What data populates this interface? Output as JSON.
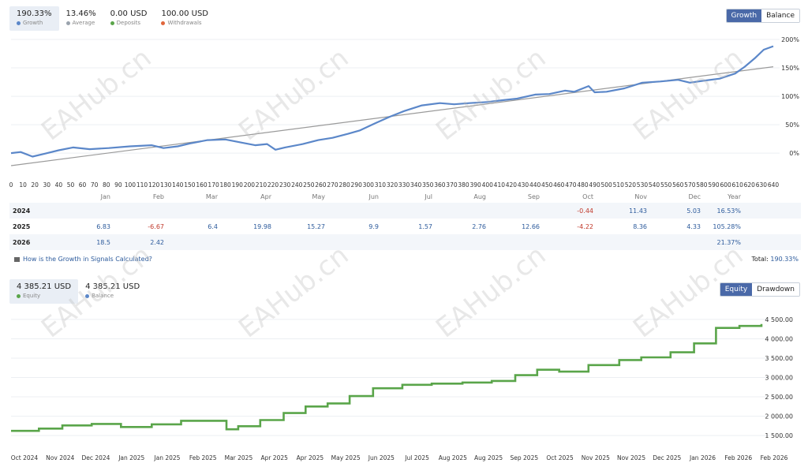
{
  "growth_stats": [
    {
      "value": "190.33%",
      "label": "Growth",
      "color": "#5b87c9",
      "active": true
    },
    {
      "value": "13.46%",
      "label": "Average",
      "color": "#9aa3ad",
      "active": false
    },
    {
      "value": "0.00 USD",
      "label": "Deposits",
      "color": "#5aa54a",
      "active": false
    },
    {
      "value": "100.00 USD",
      "label": "Withdrawals",
      "color": "#e0663c",
      "active": false
    }
  ],
  "growth_toggle": {
    "growth": "Growth",
    "balance": "Balance"
  },
  "growth_chart": {
    "y_ticks": [
      "200%",
      "150%",
      "100%",
      "50%",
      "0%"
    ],
    "x_ticks": [
      "0",
      "10",
      "20",
      "30",
      "40",
      "50",
      "60",
      "70",
      "80",
      "90",
      "100",
      "110",
      "120",
      "130",
      "140",
      "150",
      "160",
      "170",
      "180",
      "190",
      "200",
      "210",
      "220",
      "230",
      "240",
      "250",
      "260",
      "270",
      "280",
      "290",
      "300",
      "310",
      "320",
      "330",
      "340",
      "350",
      "360",
      "370",
      "380",
      "390",
      "400",
      "410",
      "420",
      "430",
      "440",
      "450",
      "460",
      "470",
      "480",
      "490",
      "500",
      "510",
      "520",
      "530",
      "540",
      "550",
      "560",
      "570",
      "580",
      "590",
      "600",
      "610",
      "620",
      "630",
      "640"
    ],
    "line_color": "#5b87c9",
    "trend_color": "#9a9a9a"
  },
  "monthly_table": {
    "headers": [
      "Jan",
      "Feb",
      "Mar",
      "Apr",
      "May",
      "Jun",
      "Jul",
      "Aug",
      "Sep",
      "Oct",
      "Nov",
      "Dec"
    ],
    "year_header": "Year",
    "rows": [
      {
        "year": "2024",
        "cells": [
          "",
          "",
          "",
          "",
          "",
          "",
          "",
          "",
          "",
          "-0.44",
          "11.43",
          "5.03"
        ],
        "total": "16.53%"
      },
      {
        "year": "2025",
        "cells": [
          "6.83",
          "-6.67",
          "6.4",
          "19.98",
          "15.27",
          "9.9",
          "1.57",
          "2.76",
          "12.66",
          "-4.22",
          "8.36",
          "4.33"
        ],
        "total": "105.28%"
      },
      {
        "year": "2026",
        "cells": [
          "18.5",
          "2.42",
          "",
          "",
          "",
          "",
          "",
          "",
          "",
          "",
          "",
          ""
        ],
        "total": "21.37%"
      }
    ],
    "help_link": "How is the Growth in Signals Calculated?",
    "total_label": "Total:",
    "total_value": "190.33%"
  },
  "equity_stats": [
    {
      "value": "4 385.21 USD",
      "label": "Equity",
      "color": "#5aa54a",
      "active": true
    },
    {
      "value": "4 385.21 USD",
      "label": "Balance",
      "color": "#5b87c9",
      "active": false
    }
  ],
  "equity_toggle": {
    "equity": "Equity",
    "drawdown": "Drawdown"
  },
  "equity_chart": {
    "y_ticks": [
      "4 500.00",
      "4 000.00",
      "3 500.00",
      "3 000.00",
      "2 500.00",
      "2 000.00",
      "1 500.00"
    ],
    "x_ticks": [
      "Oct 2024",
      "Nov 2024",
      "Dec 2024",
      "Jan 2025",
      "Jan 2025",
      "Feb 2025",
      "Mar 2025",
      "Apr 2025",
      "Apr 2025",
      "May 2025",
      "Jun 2025",
      "Jul 2025",
      "Aug 2025",
      "Aug 2025",
      "Sep 2025",
      "Oct 2025",
      "Nov 2025",
      "Nov 2025",
      "Dec 2025",
      "Jan 2026",
      "Feb 2026",
      "Feb 2026"
    ],
    "line_color": "#5aa54a"
  },
  "chart_data": [
    {
      "type": "line",
      "title": "",
      "xlabel": "",
      "ylabel": "",
      "xlim": [
        0,
        640
      ],
      "ylim": [
        -20,
        200
      ],
      "series": [
        {
          "name": "Growth",
          "x": [
            0,
            8,
            18,
            28,
            40,
            52,
            66,
            82,
            100,
            118,
            128,
            140,
            150,
            165,
            180,
            195,
            205,
            215,
            222,
            230,
            245,
            258,
            270,
            283,
            293,
            305,
            318,
            330,
            345,
            360,
            372,
            385,
            400,
            412,
            425,
            440,
            452,
            465,
            473,
            485,
            490,
            500,
            515,
            530,
            545,
            560,
            570,
            580,
            595,
            608,
            616,
            625,
            632,
            640
          ],
          "values": [
            0,
            2,
            -6,
            -1,
            5,
            10,
            7,
            9,
            12,
            14,
            9,
            12,
            17,
            23,
            24,
            18,
            14,
            16,
            6,
            10,
            16,
            23,
            27,
            34,
            40,
            52,
            64,
            74,
            84,
            88,
            86,
            88,
            90,
            93,
            96,
            103,
            104,
            110,
            108,
            118,
            107,
            108,
            114,
            124,
            126,
            129,
            124,
            127,
            131,
            140,
            152,
            168,
            182,
            188
          ]
        },
        {
          "name": "",
          "x": [
            0,
            640
          ],
          "values": [
            -22,
            152
          ]
        }
      ]
    },
    {
      "type": "line",
      "title": "",
      "xlabel": "",
      "ylabel": "",
      "ylim": [
        1400,
        4600
      ],
      "series": [
        {
          "name": "Equity",
          "x": [
            "2024-10-01",
            "2024-10-20",
            "2024-11-05",
            "2024-11-25",
            "2024-12-15",
            "2025-01-05",
            "2025-01-25",
            "2025-02-10",
            "2025-02-25",
            "2025-03-05",
            "2025-03-20",
            "2025-04-05",
            "2025-04-20",
            "2025-05-05",
            "2025-05-20",
            "2025-06-05",
            "2025-06-25",
            "2025-07-15",
            "2025-08-05",
            "2025-08-25",
            "2025-09-10",
            "2025-09-25",
            "2025-10-10",
            "2025-10-30",
            "2025-11-20",
            "2025-12-05",
            "2025-12-25",
            "2026-01-10",
            "2026-01-25",
            "2026-02-10",
            "2026-02-25"
          ],
          "values": [
            1620,
            1680,
            1760,
            1800,
            1720,
            1790,
            1880,
            1880,
            1660,
            1740,
            1900,
            2080,
            2250,
            2330,
            2520,
            2720,
            2810,
            2840,
            2870,
            2910,
            3060,
            3200,
            3150,
            3320,
            3450,
            3520,
            3650,
            3880,
            4280,
            4330,
            4380
          ]
        }
      ]
    }
  ]
}
